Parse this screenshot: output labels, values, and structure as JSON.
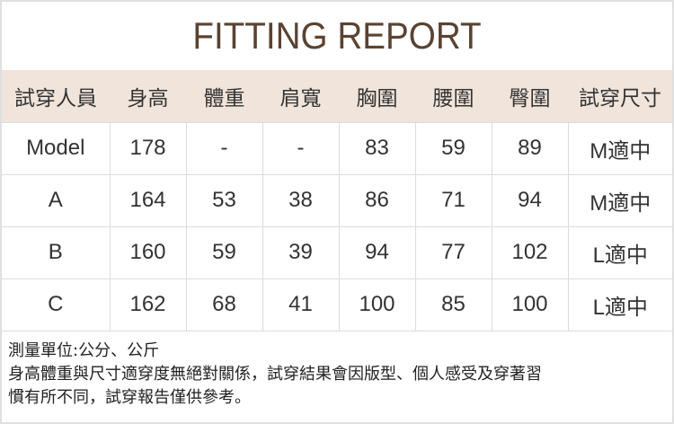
{
  "title": "FITTING REPORT",
  "headers": [
    "試穿人員",
    "身高",
    "體重",
    "肩寬",
    "胸圍",
    "腰圍",
    "臀圍",
    "試穿尺寸"
  ],
  "rows": [
    [
      "Model",
      "178",
      "-",
      "-",
      "83",
      "59",
      "89",
      "M適中"
    ],
    [
      "A",
      "164",
      "53",
      "38",
      "86",
      "71",
      "94",
      "M適中"
    ],
    [
      "B",
      "160",
      "59",
      "39",
      "94",
      "77",
      "102",
      "L適中"
    ],
    [
      "C",
      "162",
      "68",
      "41",
      "100",
      "85",
      "100",
      "L適中"
    ]
  ],
  "notes": [
    "測量單位:公分、公斤",
    "身高體重與尺寸適穿度無絕對關係，試穿結果會因版型、個人感受及穿著習",
    "慣有所不同，試穿報告僅供參考。"
  ],
  "colors": {
    "title": "#5a4332",
    "header_bg": "#f0e4db"
  }
}
